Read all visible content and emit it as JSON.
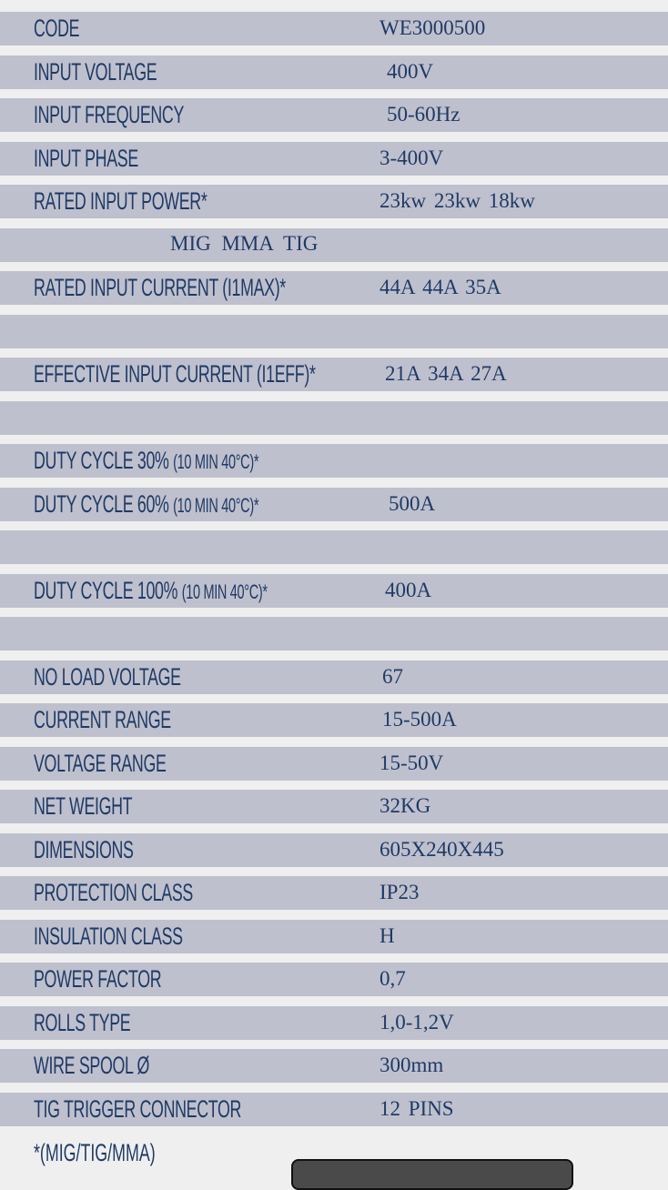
{
  "rows": [
    {
      "label": "CODE",
      "value": "WE3000500"
    },
    {
      "label": "INPUT VOLTAGE",
      "value": "400V",
      "indent": 8
    },
    {
      "label": "INPUT FREQUENCY",
      "value": "50-60Hz",
      "indent": 8
    },
    {
      "label": "INPUT PHASE",
      "value": "3-400V"
    },
    {
      "label": "RATED INPUT POWER*",
      "value": "23kw  23kw  18kw"
    },
    {
      "sub": "MIG  MMA  TIG"
    },
    {
      "label": "RATED INPUT CURRENT (I1MAX)*",
      "value": "44A  44A  35A"
    },
    {},
    {
      "label": "EFFECTIVE INPUT CURRENT (I1EFF)*",
      "value": "21A  34A  27A",
      "indent": 6
    },
    {},
    {
      "label": "DUTY CYCLE 30% ",
      "small": "(10 MIN 40°C)*",
      "value": ""
    },
    {
      "label": "DUTY CYCLE 60% ",
      "small": "(10 MIN 40°C)*",
      "value": "500A",
      "indent": 10
    },
    {},
    {
      "label": "DUTY CYCLE 100% ",
      "small": "(10 MIN 40°C)*",
      "value": "400A",
      "indent": 6
    },
    {},
    {
      "label": "NO LOAD VOLTAGE",
      "value": "67",
      "indent": 3
    },
    {
      "label": "CURRENT RANGE",
      "value": "15-500A",
      "indent": 3
    },
    {
      "label": "VOLTAGE RANGE",
      "value": "15-50V"
    },
    {
      "label": "NET WEIGHT",
      "value": "32KG"
    },
    {
      "label": "DIMENSIONS",
      "value": "605X240X445"
    },
    {
      "label": "PROTECTION CLASS",
      "value": "IP23"
    },
    {
      "label": "INSULATION CLASS",
      "value": "H"
    },
    {
      "label": "POWER FACTOR",
      "value": "0,7"
    },
    {
      "label": "ROLLS TYPE",
      "value": "1,0-1,2V"
    },
    {
      "label": "WIRE SPOOL Ø",
      "value": "300mm"
    },
    {
      "label": "TIG TRIGGER CONNECTOR",
      "value": "12 PINS"
    }
  ],
  "footnote": "*(MIG/TIG/MMA)"
}
